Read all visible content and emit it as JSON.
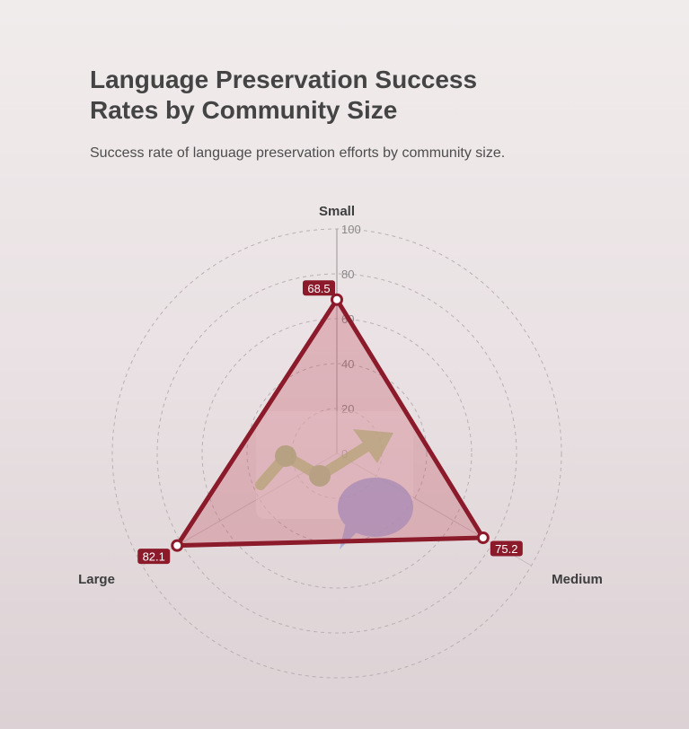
{
  "chart_data": {
    "type": "radar",
    "title": "Language Preservation Success Rates by Community Size",
    "subtitle": "Success rate of language preservation efforts by community size.",
    "categories": [
      "Small",
      "Medium",
      "Large"
    ],
    "series": [
      {
        "values": [
          68.5,
          75.2,
          82.1
        ]
      }
    ],
    "data_labels": [
      "68.5",
      "75.2",
      "82.1"
    ],
    "rlim": [
      0,
      100
    ],
    "r_ticks": [
      0,
      20,
      40,
      60,
      80,
      100
    ],
    "grid": true,
    "colors": {
      "series": "#8b1a2b",
      "fill": "rgba(196,85,100,0.32)",
      "grid": "#b8b0b2",
      "label_bg": "#8b1a2b"
    }
  }
}
